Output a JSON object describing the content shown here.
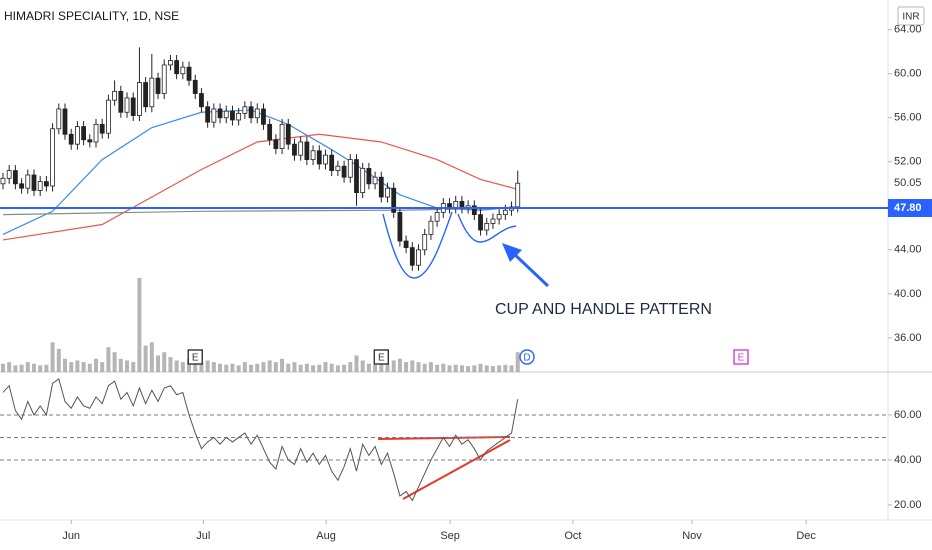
{
  "chart_data": [
    {
      "type": "candlestick",
      "title": "HIMADRI SPECIALITY, 1D, NSE",
      "currency": "INR",
      "open": [
        50.0,
        50.5,
        51.2,
        50.0,
        49.6,
        50.8,
        49.4,
        50.2,
        49.8,
        55.0,
        56.8,
        54.5,
        53.6,
        55.2,
        54.0,
        53.8,
        55.4,
        54.6,
        57.6,
        58.4,
        56.5,
        57.8,
        56.2,
        59.2,
        57.0,
        59.6,
        58.2,
        60.8,
        61.2,
        60.0,
        60.6,
        59.4,
        58.2,
        57.0,
        55.6,
        56.8,
        56.0,
        56.6,
        55.8,
        56.4,
        57.0,
        56.0,
        56.8,
        55.4,
        54.0,
        53.2,
        55.4,
        53.6,
        52.6,
        53.8,
        52.2,
        53.0,
        51.8,
        52.6,
        51.2,
        51.6,
        50.6,
        52.2,
        49.2,
        51.4,
        50.0,
        50.6,
        48.8,
        49.6,
        47.4,
        44.8,
        44.2,
        42.6,
        44.0,
        45.4,
        46.6,
        47.4,
        48.2,
        47.8,
        48.4,
        47.8,
        48.0,
        47.2,
        45.8,
        46.4,
        46.8,
        47.2,
        47.6,
        47.9
      ],
      "high": [
        51.0,
        51.7,
        51.7,
        50.5,
        51.3,
        51.3,
        50.7,
        50.7,
        55.5,
        57.3,
        57.3,
        55.0,
        55.7,
        55.7,
        54.5,
        55.9,
        55.9,
        58.1,
        59.4,
        58.9,
        58.3,
        58.3,
        62.4,
        59.7,
        61.8,
        60.1,
        61.3,
        61.7,
        61.7,
        61.1,
        61.1,
        59.9,
        58.7,
        57.5,
        57.3,
        57.3,
        57.1,
        57.1,
        56.9,
        57.5,
        57.5,
        57.3,
        57.3,
        55.9,
        54.5,
        55.9,
        55.9,
        54.1,
        54.3,
        54.3,
        53.5,
        53.5,
        53.1,
        53.1,
        52.1,
        52.1,
        52.7,
        52.7,
        51.9,
        51.9,
        51.1,
        51.1,
        50.1,
        50.1,
        47.9,
        45.3,
        44.7,
        44.5,
        45.9,
        47.1,
        47.9,
        48.7,
        48.7,
        48.9,
        48.9,
        48.5,
        48.5,
        47.7,
        46.9,
        47.3,
        47.7,
        48.1,
        48.4,
        51.2
      ],
      "low": [
        49.5,
        50.0,
        49.5,
        49.1,
        49.1,
        48.9,
        48.9,
        49.3,
        49.3,
        54.5,
        54.0,
        53.1,
        53.1,
        53.5,
        53.3,
        53.3,
        54.1,
        54.1,
        57.1,
        56.0,
        56.0,
        55.7,
        55.7,
        56.5,
        56.5,
        57.7,
        57.7,
        60.3,
        59.5,
        59.5,
        58.9,
        57.7,
        56.5,
        55.1,
        55.1,
        55.5,
        55.5,
        55.3,
        55.3,
        55.9,
        55.5,
        55.5,
        54.9,
        53.5,
        52.7,
        52.7,
        53.1,
        52.1,
        52.1,
        51.7,
        51.7,
        51.3,
        51.3,
        50.7,
        50.7,
        50.1,
        50.1,
        48.0,
        48.7,
        49.5,
        49.5,
        48.3,
        48.3,
        46.9,
        44.3,
        43.7,
        42.1,
        42.1,
        43.5,
        44.9,
        46.1,
        46.9,
        47.3,
        47.3,
        47.3,
        47.3,
        46.7,
        45.3,
        45.3,
        45.9,
        46.3,
        46.7,
        47.1,
        47.4
      ],
      "close": [
        50.5,
        51.2,
        50.0,
        49.6,
        50.8,
        49.4,
        50.2,
        49.8,
        55.0,
        56.8,
        54.5,
        53.6,
        55.2,
        54.0,
        53.8,
        55.4,
        54.6,
        57.6,
        58.4,
        56.5,
        57.8,
        56.2,
        59.2,
        57.0,
        59.6,
        58.2,
        60.8,
        61.2,
        60.0,
        60.6,
        59.4,
        58.2,
        57.0,
        55.6,
        56.8,
        56.0,
        56.6,
        55.8,
        56.4,
        57.0,
        56.0,
        56.8,
        55.4,
        54.0,
        53.2,
        55.4,
        53.6,
        52.6,
        53.8,
        52.2,
        53.0,
        51.8,
        52.6,
        51.2,
        51.6,
        50.6,
        52.2,
        49.2,
        51.4,
        50.0,
        50.6,
        48.8,
        49.6,
        47.4,
        44.8,
        44.2,
        42.6,
        44.0,
        45.4,
        46.6,
        47.4,
        48.2,
        47.8,
        48.4,
        47.8,
        48.0,
        47.2,
        45.8,
        46.4,
        46.8,
        47.2,
        47.6,
        47.9,
        50.05
      ],
      "volume": [
        0.25,
        0.3,
        0.2,
        0.22,
        0.3,
        0.25,
        0.2,
        0.22,
        0.9,
        0.7,
        0.4,
        0.3,
        0.35,
        0.3,
        0.25,
        0.4,
        0.3,
        0.75,
        0.6,
        0.4,
        0.35,
        0.3,
        2.85,
        0.8,
        0.9,
        0.5,
        0.6,
        0.45,
        0.35,
        0.3,
        0.4,
        0.35,
        0.3,
        0.35,
        0.3,
        0.25,
        0.22,
        0.25,
        0.2,
        0.3,
        0.22,
        0.25,
        0.3,
        0.35,
        0.3,
        0.4,
        0.25,
        0.3,
        0.22,
        0.25,
        0.2,
        0.22,
        0.3,
        0.25,
        0.2,
        0.22,
        0.3,
        0.5,
        0.35,
        0.25,
        0.22,
        0.3,
        0.25,
        0.35,
        0.4,
        0.3,
        0.35,
        0.3,
        0.25,
        0.3,
        0.22,
        0.25,
        0.2,
        0.22,
        0.2,
        0.18,
        0.2,
        0.25,
        0.2,
        0.18,
        0.2,
        0.22,
        0.2,
        0.6
      ],
      "vlim": [
        0,
        4
      ],
      "up_color": "#ffffff",
      "down_color": "#222222",
      "wick_color": "#222222",
      "volume_color": "#a8a8a8",
      "lines": [
        {
          "color": "#3d8be6",
          "x": [
            0,
            8,
            16,
            24,
            32,
            40,
            46,
            53,
            57,
            64,
            70,
            77,
            83
          ],
          "values": [
            45.4,
            47.5,
            52.2,
            55.1,
            56.5,
            56.7,
            55.4,
            53.1,
            51.7,
            49.0,
            47.8,
            47.6,
            47.9
          ]
        },
        {
          "color": "#e8574e",
          "x": [
            0,
            16,
            32,
            41,
            51,
            61,
            70,
            77,
            83
          ],
          "values": [
            44.9,
            46.3,
            51.3,
            53.8,
            54.5,
            53.8,
            52.2,
            50.4,
            49.5
          ]
        },
        {
          "color": "#8a8a8a",
          "x": [
            0,
            32,
            64,
            83
          ],
          "values": [
            47.2,
            47.5,
            47.6,
            47.8
          ]
        }
      ],
      "hline": {
        "value": 47.8,
        "label": "47.80",
        "color": "#2962ff"
      },
      "last_price": {
        "value": 50.05,
        "label": "50.05"
      },
      "annotation": "CUP AND HANDLE PATTERN",
      "events": [
        {
          "label": "E",
          "x": 31,
          "color": "#333333"
        },
        {
          "label": "E",
          "x": 61,
          "color": "#333333"
        },
        {
          "label": "D",
          "x": 84.5,
          "color": "#2962ff"
        },
        {
          "label": "E",
          "x": 119,
          "color": "#d63bd6"
        }
      ],
      "xlim": [
        -0.48,
        142.7
      ],
      "ylim": [
        32.9,
        66.7
      ],
      "yticks": [
        {
          "value": 64,
          "label": "64.00"
        },
        {
          "value": 60,
          "label": "60.00"
        },
        {
          "value": 56,
          "label": "56.00"
        },
        {
          "value": 52,
          "label": "52.00"
        },
        {
          "value": 44,
          "label": "44.00"
        },
        {
          "value": 40,
          "label": "40.00"
        },
        {
          "value": 36,
          "label": "36.00"
        }
      ]
    },
    {
      "type": "line",
      "values": [
        70,
        73,
        62,
        58,
        66,
        60,
        64,
        60,
        74,
        76,
        66,
        63,
        68,
        64,
        63,
        68,
        65,
        73,
        75,
        67,
        70,
        64,
        72,
        65,
        71,
        66,
        72,
        73,
        69,
        70,
        60,
        52,
        45,
        48,
        50,
        47,
        50,
        48,
        50,
        52,
        47,
        51,
        45,
        39,
        36,
        46,
        40,
        38,
        45,
        39,
        43,
        38,
        42,
        35,
        31,
        37,
        45,
        35,
        47,
        42,
        46,
        38,
        43,
        34,
        24,
        26,
        22,
        28,
        34,
        40,
        45,
        50,
        46,
        51,
        47,
        49,
        45,
        40,
        44,
        46,
        48,
        50,
        52,
        67
      ],
      "color": "#555555",
      "levels": [
        60,
        50,
        40
      ],
      "xlim": [
        -0.48,
        142.7
      ],
      "ylim": [
        13.3,
        79.1
      ],
      "yticks": [
        {
          "value": 60,
          "label": "60.00"
        },
        {
          "value": 40,
          "label": "40.00"
        },
        {
          "value": 20,
          "label": "20.00"
        }
      ],
      "xticks": [
        {
          "value": 11,
          "label": "Jun"
        },
        {
          "value": 32.3,
          "label": "Jul"
        },
        {
          "value": 52.1,
          "label": "Aug"
        },
        {
          "value": 72.1,
          "label": "Sep"
        },
        {
          "value": 91.9,
          "label": "Oct"
        },
        {
          "value": 111.1,
          "label": "Nov"
        },
        {
          "value": 129.5,
          "label": "Dec"
        }
      ]
    }
  ]
}
